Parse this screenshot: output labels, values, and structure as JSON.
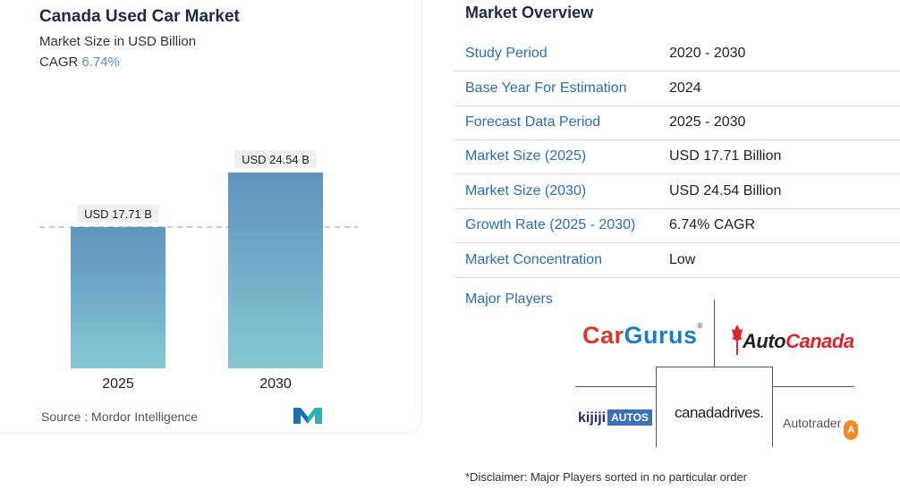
{
  "chart": {
    "title": "Canada Used Car Market",
    "subtitle": "Market Size in USD Billion",
    "cagr_label": "CAGR",
    "cagr_value": "6.74%",
    "source": "Source :  Mordor Intelligence"
  },
  "chart_data": {
    "type": "bar",
    "title": "Canada Used Car Market",
    "subtitle": "Market Size in USD Billion",
    "categories": [
      "2025",
      "2030"
    ],
    "values": [
      17.71,
      24.54
    ],
    "data_labels": [
      "USD 17.71 B",
      "USD 24.54 B"
    ],
    "ylim": [
      0,
      28
    ],
    "grid": false,
    "reference_line": "dashed line at 2025 value",
    "colors": {
      "bar_top": "#5f93bd",
      "bar_bottom": "#86c7d3",
      "label_bg": "#eef0f2",
      "dashed_line": "#8fb6d3"
    }
  },
  "overview": {
    "title": "Market Overview",
    "rows": [
      {
        "label": "Study Period",
        "value": "2020 - 2030"
      },
      {
        "label": "Base Year For Estimation",
        "value": "2024"
      },
      {
        "label": "Forecast Data Period",
        "value": "2025 - 2030"
      },
      {
        "label": "Market Size (2025)",
        "value": "USD 17.71 Billion"
      },
      {
        "label": "Market Size (2030)",
        "value": "USD 24.54 Billion"
      },
      {
        "label": "Growth Rate (2025 - 2030)",
        "value": "6.74% CAGR"
      },
      {
        "label": "Market Concentration",
        "value": "Low"
      }
    ],
    "players_label": "Major Players"
  },
  "players": {
    "cargurus": {
      "a": "Car",
      "b": "Gurus",
      "tm": "®"
    },
    "autocanada": {
      "a": "Auto",
      "b": "Canada"
    },
    "kijiji": {
      "a": "kijiji",
      "b": "AUTOS"
    },
    "canadadrives": "canadadrives.",
    "autotrader": {
      "a": "Autotrader",
      "badge": "A"
    }
  },
  "disclaimer": "*Disclaimer: Major Players sorted in no particular order",
  "accent_color": "#2a6fae"
}
